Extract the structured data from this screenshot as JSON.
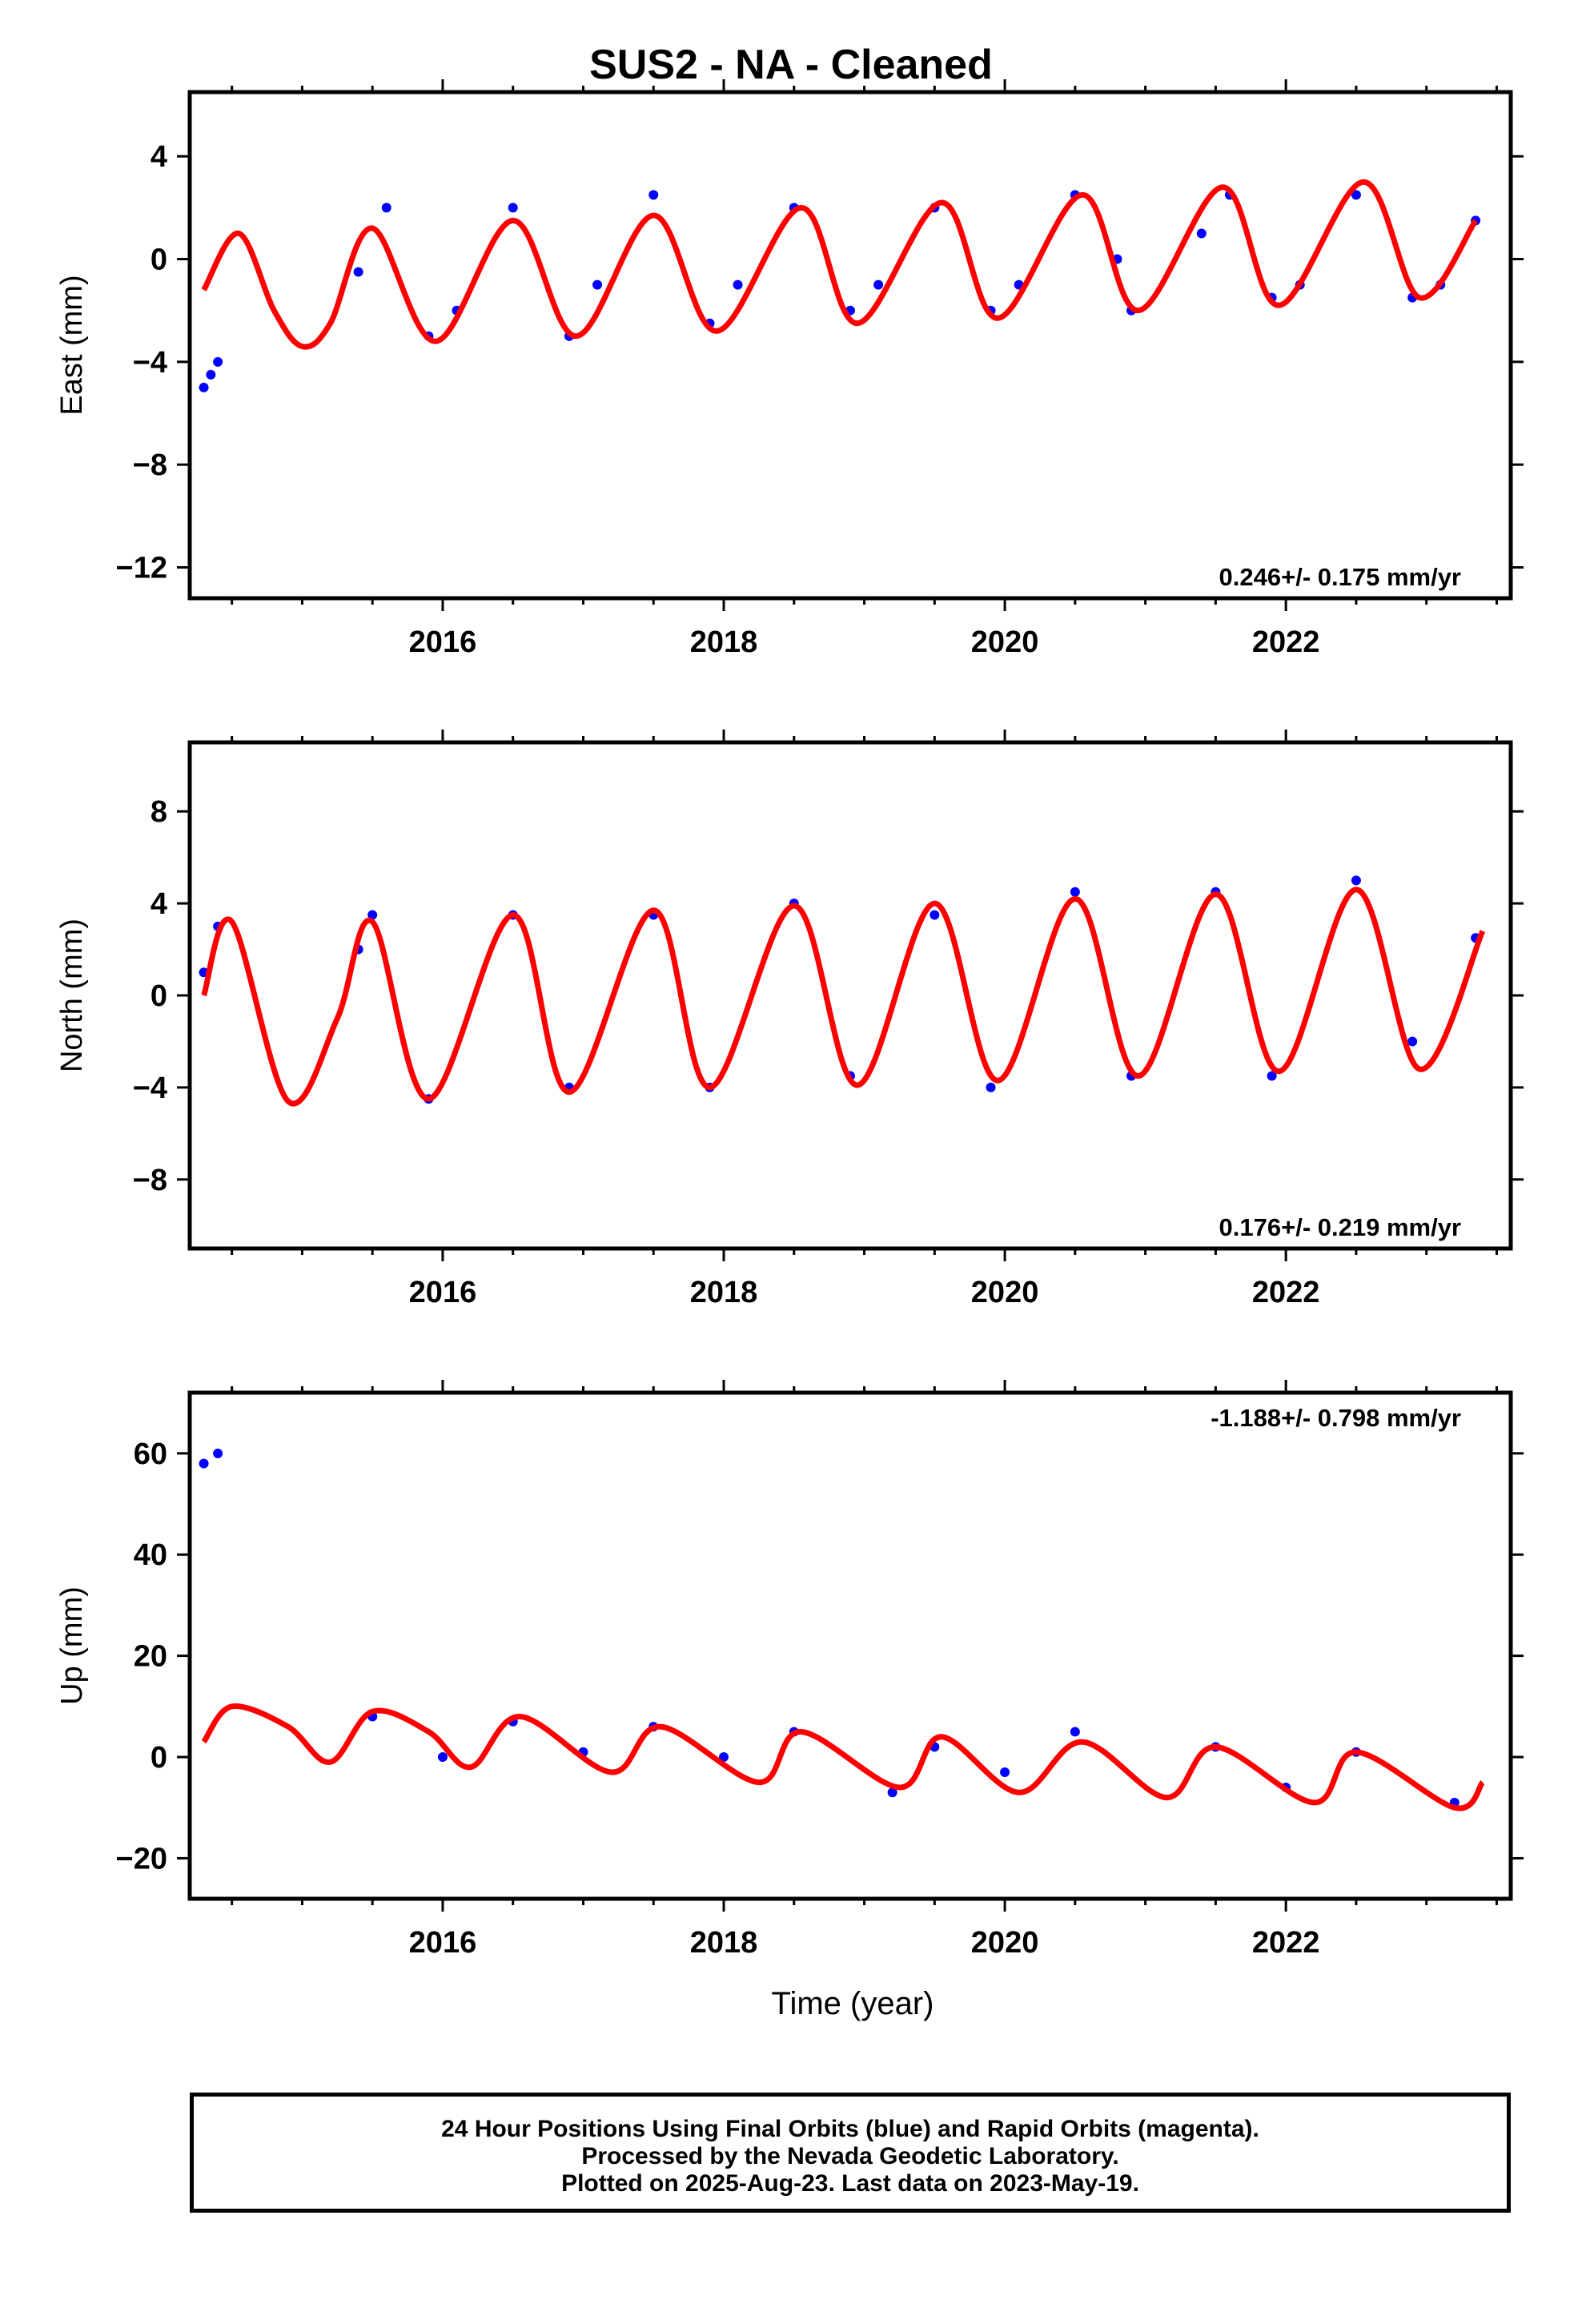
{
  "title": "SUS2  - NA - Cleaned",
  "xlabel": "Time (year)",
  "footer_lines": [
    "24 Hour Positions Using Final Orbits (blue) and Rapid Orbits (magenta).",
    "Processed by the Nevada Geodetic Laboratory.",
    "Plotted on 2025-Aug-23. Last data on 2023-May-19."
  ],
  "colors": {
    "points": "#0000ff",
    "model": "#ff0000",
    "axes": "#000000"
  },
  "chart_data": [
    {
      "type": "scatter",
      "ylabel": "East (mm)",
      "rate_text": "0.246+/- 0.175 mm/yr",
      "xlim": [
        2014.2,
        2023.6
      ],
      "ylim": [
        -13.2,
        6.5
      ],
      "yticks": [
        4,
        0,
        -4,
        -8,
        -12
      ],
      "xticks": [
        2016,
        2018,
        2020,
        2022
      ],
      "grid": false,
      "points_series": {
        "name": "",
        "x": [
          2014.3,
          2014.35,
          2014.4,
          2015.4,
          2015.6,
          2015.9,
          2016.1,
          2016.5,
          2016.9,
          2017.1,
          2017.5,
          2017.9,
          2018.1,
          2018.5,
          2018.9,
          2019.1,
          2019.5,
          2019.9,
          2020.1,
          2020.5,
          2020.8,
          2020.9,
          2021.4,
          2021.6,
          2021.9,
          2022.1,
          2022.5,
          2022.9,
          2023.1,
          2023.35
        ],
        "y": [
          -5.0,
          -4.5,
          -4.0,
          -0.5,
          2.0,
          -3.0,
          -2.0,
          2.0,
          -3.0,
          -1.0,
          2.5,
          -2.5,
          -1.0,
          2.0,
          -2.0,
          -1.0,
          2.0,
          -2.0,
          -1.0,
          2.5,
          0.0,
          -2.0,
          1.0,
          2.5,
          -1.5,
          -1.0,
          2.5,
          -1.5,
          -1.0,
          1.5
        ]
      },
      "model_series": {
        "name": "",
        "x": [
          2014.3,
          2014.55,
          2014.8,
          2015.0,
          2015.2,
          2015.5,
          2015.95,
          2016.5,
          2016.95,
          2017.5,
          2017.95,
          2018.55,
          2018.95,
          2019.55,
          2019.95,
          2020.55,
          2020.95,
          2021.55,
          2021.95,
          2022.55,
          2022.95,
          2023.35
        ],
        "y": [
          -1.2,
          1.0,
          -2.0,
          -3.4,
          -2.5,
          1.2,
          -3.2,
          1.5,
          -3.0,
          1.7,
          -2.8,
          2.0,
          -2.5,
          2.2,
          -2.3,
          2.5,
          -2.0,
          2.8,
          -1.8,
          3.0,
          -1.5,
          1.5
        ]
      }
    },
    {
      "type": "scatter",
      "ylabel": "North (mm)",
      "rate_text": "0.176+/- 0.219 mm/yr",
      "xlim": [
        2014.2,
        2023.6
      ],
      "ylim": [
        -11,
        11
      ],
      "yticks": [
        8,
        4,
        0,
        -4,
        -8
      ],
      "xticks": [
        2016,
        2018,
        2020,
        2022
      ],
      "grid": false,
      "points_series": {
        "name": "",
        "x": [
          2014.3,
          2014.4,
          2015.4,
          2015.5,
          2015.9,
          2016.5,
          2016.9,
          2017.5,
          2017.9,
          2018.5,
          2018.9,
          2019.5,
          2019.9,
          2020.5,
          2020.9,
          2021.5,
          2021.9,
          2022.5,
          2022.9,
          2023.35
        ],
        "y": [
          1.0,
          3.0,
          2.0,
          3.5,
          -4.5,
          3.5,
          -4.0,
          3.5,
          -4.0,
          4.0,
          -3.5,
          3.5,
          -4.0,
          4.5,
          -3.5,
          4.5,
          -3.5,
          5.0,
          -2.0,
          2.5
        ]
      },
      "model_series": {
        "name": "",
        "x": [
          2014.3,
          2014.5,
          2014.9,
          2015.25,
          2015.5,
          2015.9,
          2016.5,
          2016.9,
          2017.5,
          2017.9,
          2018.5,
          2018.95,
          2019.5,
          2019.95,
          2020.5,
          2020.95,
          2021.5,
          2021.95,
          2022.5,
          2022.95,
          2023.4
        ],
        "y": [
          0.0,
          3.2,
          -4.6,
          -1.0,
          3.2,
          -4.5,
          3.5,
          -4.2,
          3.7,
          -4.0,
          3.9,
          -3.9,
          4.0,
          -3.7,
          4.2,
          -3.5,
          4.4,
          -3.3,
          4.6,
          -3.2,
          2.8
        ]
      }
    },
    {
      "type": "scatter",
      "ylabel": "Up (mm)",
      "rate_text": "-1.188+/- 0.798 mm/yr",
      "xlim": [
        2014.2,
        2023.6
      ],
      "ylim": [
        -28,
        72
      ],
      "yticks": [
        60,
        40,
        20,
        0,
        -20
      ],
      "xticks": [
        2016,
        2018,
        2020,
        2022
      ],
      "grid": false,
      "points_series": {
        "name": "",
        "x": [
          2014.3,
          2014.4,
          2015.5,
          2016.0,
          2016.5,
          2017.0,
          2017.5,
          2018.0,
          2018.5,
          2019.2,
          2019.5,
          2020.0,
          2020.5,
          2021.5,
          2022.0,
          2022.5,
          2023.2
        ],
        "y": [
          58,
          60,
          8,
          0,
          7,
          1,
          6,
          0,
          5,
          -7,
          2,
          -3,
          5,
          2,
          -6,
          1,
          -9
        ]
      },
      "model_series": {
        "name": "",
        "x": [
          2014.3,
          2014.5,
          2014.9,
          2015.2,
          2015.5,
          2015.9,
          2016.2,
          2016.55,
          2017.2,
          2017.55,
          2018.25,
          2018.55,
          2019.25,
          2019.55,
          2020.1,
          2020.55,
          2021.15,
          2021.5,
          2022.2,
          2022.5,
          2023.2,
          2023.4
        ],
        "y": [
          3,
          10,
          6,
          -1,
          9,
          5,
          -2,
          8,
          -3,
          6,
          -5,
          5,
          -6,
          4,
          -7,
          3,
          -8,
          2,
          -9,
          1,
          -10,
          -5
        ]
      }
    }
  ]
}
